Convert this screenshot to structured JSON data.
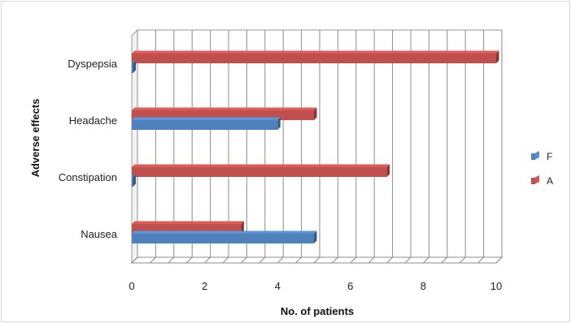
{
  "chart_data": {
    "type": "bar",
    "orientation": "horizontal",
    "style": "3d-clustered",
    "categories": [
      "Nausea",
      "Constipation",
      "Headache",
      "Dyspepsia"
    ],
    "series": [
      {
        "name": "A",
        "color": "#c0504d",
        "values": [
          3,
          7,
          5,
          10
        ]
      },
      {
        "name": "F",
        "color": "#4f81bd",
        "values": [
          5,
          0,
          4,
          0
        ]
      }
    ],
    "xlabel": "No. of patients",
    "ylabel": "Adverse effects",
    "xlim": [
      0,
      10
    ],
    "xticks": [
      0,
      2,
      4,
      6,
      8,
      10
    ],
    "grid": true,
    "legend_position": "right"
  }
}
